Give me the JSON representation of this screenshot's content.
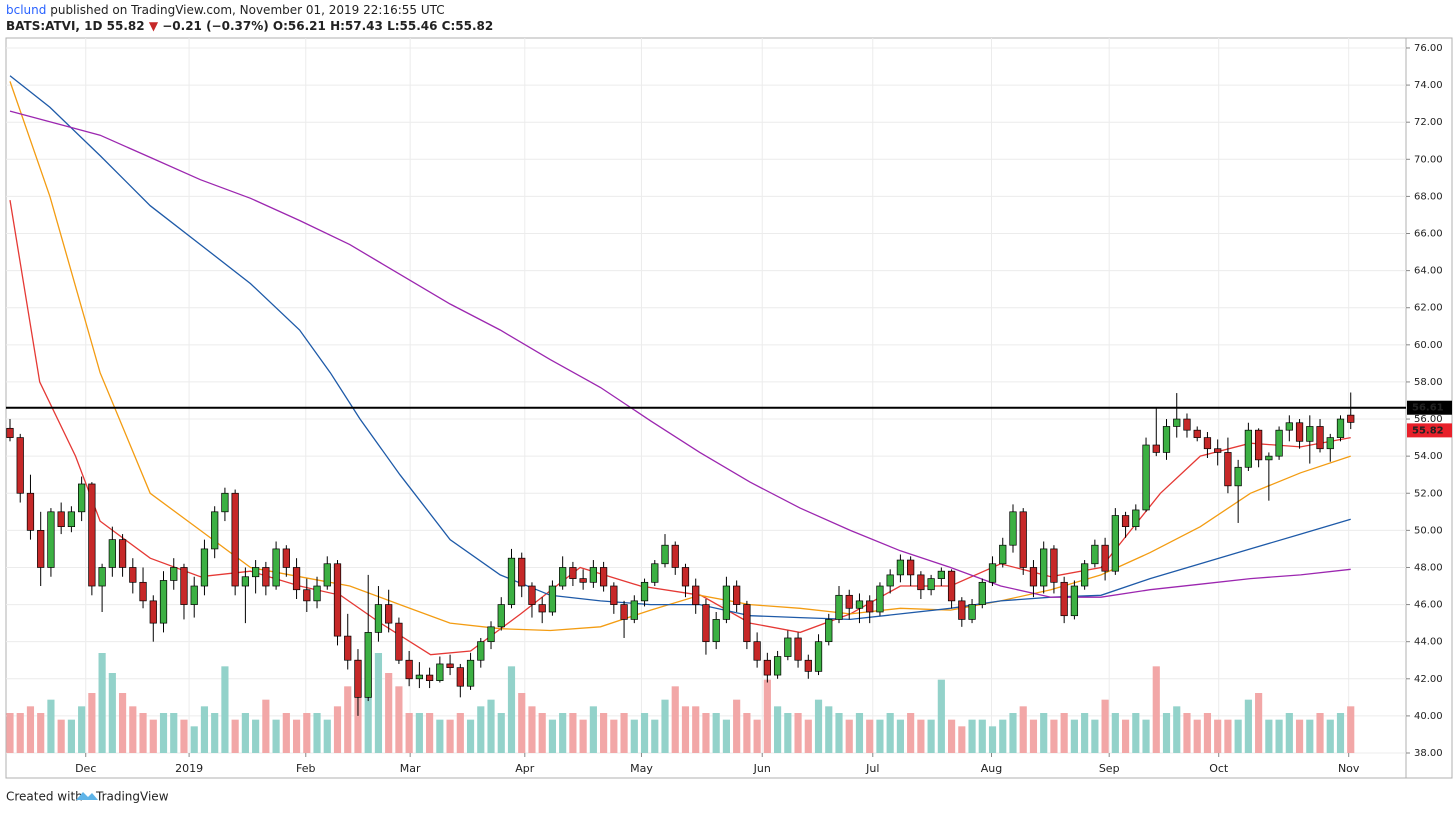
{
  "header": {
    "author": "bclund",
    "published": "published on TradingView.com, November 01, 2019 22:16:55 UTC",
    "symbol": "BATS:ATVI, 1D",
    "price": "55.82",
    "arrow": "▼",
    "change": "−0.21 (−0.37%)",
    "open": "O:56.21",
    "high": "H:57.43",
    "low": "L:55.46",
    "close": "C:55.82"
  },
  "footer": {
    "created": "Created with",
    "brand": "TradingView"
  },
  "chart_data": {
    "type": "candlestick",
    "ylim": [
      38,
      76.43
    ],
    "yticks": [
      {
        "value": 38,
        "label": "38.00"
      },
      {
        "value": 40,
        "label": "40.00"
      },
      {
        "value": 42,
        "label": "42.00"
      },
      {
        "value": 44,
        "label": "44.00"
      },
      {
        "value": 46,
        "label": "46.00"
      },
      {
        "value": 48,
        "label": "48.00"
      },
      {
        "value": 50,
        "label": "50.00"
      },
      {
        "value": 52,
        "label": "52.00"
      },
      {
        "value": 54,
        "label": "54.00"
      },
      {
        "value": 56,
        "label": "56.00"
      },
      {
        "value": 58,
        "label": "58.00"
      },
      {
        "value": 60,
        "label": "60.00"
      },
      {
        "value": 62,
        "label": "62.00"
      },
      {
        "value": 64,
        "label": "64.00"
      },
      {
        "value": 66,
        "label": "66.00"
      },
      {
        "value": 68,
        "label": "68.00"
      },
      {
        "value": 70,
        "label": "70.00"
      },
      {
        "value": 72,
        "label": "72.00"
      },
      {
        "value": 74,
        "label": "74.00"
      },
      {
        "value": 76,
        "label": "76.00"
      }
    ],
    "xlim": [
      -0.39,
      136.4
    ],
    "xticks": [
      {
        "value": 7.4,
        "label": "Dec"
      },
      {
        "value": 17.5,
        "label": "2019"
      },
      {
        "value": 28.9,
        "label": "Feb"
      },
      {
        "value": 39.1,
        "label": "Mar"
      },
      {
        "value": 50.3,
        "label": "Apr"
      },
      {
        "value": 61.7,
        "label": "May"
      },
      {
        "value": 73.5,
        "label": "Jun"
      },
      {
        "value": 84.3,
        "label": "Jul"
      },
      {
        "value": 95.9,
        "label": "Aug"
      },
      {
        "value": 107.4,
        "label": "Sep"
      },
      {
        "value": 118.1,
        "label": "Oct"
      },
      {
        "value": 130.8,
        "label": "Nov"
      }
    ],
    "grid": true,
    "up_color": "#3cb043",
    "down_color": "#c62828",
    "up_volume_color": "#93d2ca",
    "down_volume_color": "#f2a7a7",
    "ohlc": [
      [
        55.5,
        56,
        54.8,
        55
      ],
      [
        55,
        55.2,
        51.5,
        52
      ],
      [
        52,
        53,
        49.5,
        50
      ],
      [
        50,
        51,
        47,
        48
      ],
      [
        48,
        51.2,
        47.5,
        51
      ],
      [
        51,
        51.5,
        49.8,
        50.2
      ],
      [
        50.2,
        51.3,
        49.9,
        51
      ],
      [
        51,
        52.9,
        50.5,
        52.5
      ],
      [
        52.5,
        52.6,
        46.5,
        47
      ],
      [
        47,
        48.2,
        45.6,
        48
      ],
      [
        48,
        50.2,
        47.5,
        49.5
      ],
      [
        49.5,
        49.8,
        47.5,
        48
      ],
      [
        48,
        48.5,
        46.6,
        47.2
      ],
      [
        47.2,
        48,
        45.8,
        46.2
      ],
      [
        46.2,
        46.5,
        44,
        45
      ],
      [
        45,
        47.8,
        44.5,
        47.3
      ],
      [
        47.3,
        48.5,
        46.8,
        48
      ],
      [
        48,
        48.2,
        45.2,
        46
      ],
      [
        46,
        47.5,
        45.3,
        47
      ],
      [
        47,
        49.5,
        46.5,
        49
      ],
      [
        49,
        51.3,
        48.5,
        51
      ],
      [
        51,
        52.3,
        50.5,
        52
      ],
      [
        52,
        52.2,
        46.5,
        47
      ],
      [
        47,
        48,
        45,
        47.5
      ],
      [
        47.5,
        48.4,
        46.6,
        48
      ],
      [
        48,
        48.3,
        46.5,
        47
      ],
      [
        47,
        49.4,
        46.8,
        49
      ],
      [
        49,
        49.2,
        47.5,
        48
      ],
      [
        48,
        48.5,
        46.3,
        46.8
      ],
      [
        46.8,
        47.4,
        45.6,
        46.2
      ],
      [
        46.2,
        47.5,
        45.8,
        47
      ],
      [
        47,
        48.6,
        46.8,
        48.2
      ],
      [
        48.2,
        48.4,
        43.8,
        44.3
      ],
      [
        44.3,
        45.5,
        42.5,
        43
      ],
      [
        43,
        43.6,
        40,
        41
      ],
      [
        41,
        47.6,
        40.8,
        44.5
      ],
      [
        44.5,
        47,
        44,
        46
      ],
      [
        46,
        46.8,
        44.5,
        45
      ],
      [
        45,
        45.3,
        42.8,
        43
      ],
      [
        43,
        43.5,
        41.6,
        42
      ],
      [
        42,
        42.9,
        41.5,
        42.2
      ],
      [
        42.2,
        42.6,
        41.5,
        41.9
      ],
      [
        41.9,
        43.2,
        41.8,
        42.8
      ],
      [
        42.8,
        43.3,
        42.2,
        42.6
      ],
      [
        42.6,
        42.8,
        41,
        41.6
      ],
      [
        41.6,
        43.4,
        41.4,
        43
      ],
      [
        43,
        44.2,
        42.6,
        44
      ],
      [
        44,
        45.1,
        43.6,
        44.8
      ],
      [
        44.8,
        46.4,
        44.6,
        46
      ],
      [
        46,
        49,
        45.8,
        48.5
      ],
      [
        48.5,
        48.8,
        46.4,
        47
      ],
      [
        47,
        47.2,
        45.3,
        46
      ],
      [
        46,
        46.4,
        45,
        45.6
      ],
      [
        45.6,
        47.3,
        45.4,
        47
      ],
      [
        47,
        48.6,
        46.8,
        48
      ],
      [
        48,
        48.3,
        47,
        47.4
      ],
      [
        47.4,
        47.9,
        46.8,
        47.2
      ],
      [
        47.2,
        48.4,
        46.9,
        48
      ],
      [
        48,
        48.3,
        46.7,
        47
      ],
      [
        47,
        47.2,
        45.5,
        46
      ],
      [
        46,
        46.2,
        44.2,
        45.2
      ],
      [
        45.2,
        46.5,
        45,
        46.2
      ],
      [
        46.2,
        47.4,
        45.9,
        47.2
      ],
      [
        47.2,
        48.4,
        47,
        48.2
      ],
      [
        48.2,
        49.8,
        48,
        49.2
      ],
      [
        49.2,
        49.4,
        47.6,
        48
      ],
      [
        48,
        48.2,
        46.4,
        47
      ],
      [
        47,
        47.4,
        45.5,
        46
      ],
      [
        46,
        46.3,
        43.3,
        44
      ],
      [
        44,
        45.6,
        43.6,
        45.2
      ],
      [
        45.2,
        47.5,
        45,
        47
      ],
      [
        47,
        47.3,
        45.6,
        46
      ],
      [
        46,
        46.2,
        43.6,
        44
      ],
      [
        44,
        44.5,
        42.6,
        43
      ],
      [
        43,
        43.4,
        41.8,
        42.2
      ],
      [
        42.2,
        43.5,
        42,
        43.2
      ],
      [
        43.2,
        44.6,
        43,
        44.2
      ],
      [
        44.2,
        44.5,
        42.6,
        43
      ],
      [
        43,
        43.3,
        42,
        42.4
      ],
      [
        42.4,
        44.4,
        42.2,
        44
      ],
      [
        44,
        45.5,
        43.8,
        45.2
      ],
      [
        45.2,
        47,
        45,
        46.5
      ],
      [
        46.5,
        46.8,
        45.2,
        45.8
      ],
      [
        45.8,
        46.6,
        45,
        46.2
      ],
      [
        46.2,
        46.5,
        45,
        45.6
      ],
      [
        45.6,
        47.2,
        45.4,
        47
      ],
      [
        47,
        47.9,
        46.6,
        47.6
      ],
      [
        47.6,
        48.7,
        47.2,
        48.4
      ],
      [
        48.4,
        48.6,
        47,
        47.6
      ],
      [
        47.6,
        47.8,
        46.3,
        46.8
      ],
      [
        46.8,
        47.6,
        46.5,
        47.4
      ],
      [
        47.4,
        48,
        47,
        47.8
      ],
      [
        47.8,
        47.9,
        45.8,
        46.2
      ],
      [
        46.2,
        46.4,
        44.8,
        45.2
      ],
      [
        45.2,
        46.3,
        45,
        46
      ],
      [
        46,
        47.4,
        45.8,
        47.2
      ],
      [
        47.2,
        48.6,
        47,
        48.2
      ],
      [
        48.2,
        49.6,
        48,
        49.2
      ],
      [
        49.2,
        51.4,
        48.8,
        51
      ],
      [
        51,
        51.2,
        47.6,
        48
      ],
      [
        48,
        48.4,
        46.4,
        47
      ],
      [
        47,
        49.4,
        46.6,
        49
      ],
      [
        49,
        49.2,
        46.6,
        47.2
      ],
      [
        47.2,
        47.5,
        45,
        45.4
      ],
      [
        45.4,
        47.3,
        45.2,
        47
      ],
      [
        47,
        48.4,
        46.8,
        48.2
      ],
      [
        48.2,
        49.5,
        48,
        49.2
      ],
      [
        49.2,
        49.6,
        47.3,
        47.8
      ],
      [
        47.8,
        51.2,
        47.6,
        50.8
      ],
      [
        50.8,
        51,
        49.6,
        50.2
      ],
      [
        50.2,
        51.4,
        50,
        51.1
      ],
      [
        51.1,
        55,
        51,
        54.6
      ],
      [
        54.6,
        56.6,
        54,
        54.2
      ],
      [
        54.2,
        56,
        53.8,
        55.6
      ],
      [
        55.6,
        57.4,
        55,
        56
      ],
      [
        56,
        56.3,
        55,
        55.4
      ],
      [
        55.4,
        55.6,
        54.8,
        55
      ],
      [
        55,
        55.3,
        53.9,
        54.4
      ],
      [
        54.4,
        54.9,
        53.5,
        54.2
      ],
      [
        54.2,
        55,
        52,
        52.4
      ],
      [
        52.4,
        53.8,
        50.4,
        53.4
      ],
      [
        53.4,
        55.8,
        53.2,
        55.4
      ],
      [
        55.4,
        55.5,
        53.4,
        53.8
      ],
      [
        53.8,
        54.2,
        51.6,
        54
      ],
      [
        54,
        55.6,
        53.8,
        55.4
      ],
      [
        55.4,
        56.2,
        54.8,
        55.8
      ],
      [
        55.8,
        56,
        54.4,
        54.8
      ],
      [
        54.8,
        56.2,
        53.6,
        55.6
      ],
      [
        55.6,
        56,
        54.2,
        54.4
      ],
      [
        54.4,
        55.2,
        53.7,
        55
      ],
      [
        55,
        56.2,
        54.8,
        56
      ],
      [
        56.21,
        57.43,
        55.46,
        55.82
      ]
    ],
    "volume": [
      6,
      6,
      7,
      6,
      8,
      5,
      5,
      7,
      9,
      15,
      12,
      9,
      7,
      6,
      5,
      6,
      6,
      5,
      4,
      7,
      6,
      13,
      5,
      6,
      5,
      8,
      5,
      6,
      5,
      6,
      6,
      5,
      7,
      10,
      14,
      9,
      15,
      12,
      10,
      6,
      6,
      6,
      5,
      5,
      6,
      5,
      7,
      8,
      6,
      13,
      9,
      7,
      6,
      5,
      6,
      6,
      5,
      7,
      6,
      5,
      6,
      5,
      6,
      5,
      8,
      10,
      7,
      7,
      6,
      6,
      5,
      8,
      6,
      5,
      11,
      7,
      6,
      6,
      5,
      8,
      7,
      6,
      5,
      6,
      5,
      5,
      6,
      5,
      6,
      5,
      5,
      11,
      5,
      4,
      5,
      5,
      4,
      5,
      6,
      7,
      5,
      6,
      5,
      6,
      5,
      6,
      5,
      8,
      6,
      5,
      6,
      5,
      13,
      6,
      7,
      6,
      5,
      6,
      5,
      5,
      5,
      8,
      9,
      5,
      5,
      6,
      5,
      5,
      6,
      5,
      6,
      7
    ],
    "vlim": [
      0,
      30
    ],
    "series": [
      {
        "color": "#e53935",
        "x": [
          0,
          2.9,
          6.4,
          8.8,
          13.7,
          18.6,
          23.5,
          28.3,
          32.3,
          36.2,
          41.1,
          45,
          49.9,
          55.7,
          61.6,
          67.5,
          72.3,
          77.2,
          82.1,
          87,
          91.9,
          96.8,
          101.7,
          106.6,
          109.5,
          112.4,
          116.3,
          121.2,
          126.1,
          131
        ],
        "values": [
          67.8,
          58,
          54,
          50.5,
          48.5,
          47.5,
          47.8,
          47,
          46.5,
          45,
          43.3,
          43.5,
          45.5,
          48,
          47,
          46.5,
          45,
          44.5,
          45.5,
          47,
          47,
          48.2,
          47.5,
          48,
          50,
          52,
          54,
          54.7,
          54.5,
          55
        ]
      },
      {
        "color": "#f39c12",
        "x": [
          0,
          3.9,
          8.8,
          13.7,
          18.6,
          23.5,
          28.3,
          33.2,
          38.1,
          43,
          47.9,
          52.8,
          57.7,
          62.6,
          67.4,
          72.3,
          77.2,
          82.1,
          87,
          91.9,
          96.8,
          101.7,
          106.6,
          111.4,
          116.3,
          121.2,
          126.1,
          131
        ],
        "values": [
          74.2,
          68,
          58.5,
          52,
          50,
          48,
          47.5,
          47,
          46,
          45,
          44.7,
          44.6,
          44.8,
          45.7,
          46.5,
          46,
          45.8,
          45.5,
          45.8,
          45.7,
          46.2,
          46.8,
          47.6,
          48.8,
          50.2,
          52,
          53.1,
          54
        ]
      },
      {
        "color": "#1e5aa8",
        "x": [
          0,
          3.9,
          8.8,
          13.7,
          18.6,
          23.5,
          28.3,
          31.3,
          34.2,
          38.1,
          43,
          47.9,
          52.8,
          57.7,
          62.6,
          67.4,
          72.3,
          77.2,
          82.1,
          87,
          91.9,
          96.8,
          101.7,
          106.6,
          111.4,
          116.3,
          121.2,
          126.1,
          131
        ],
        "values": [
          74.5,
          72.8,
          70.2,
          67.5,
          65.4,
          63.3,
          60.8,
          58.5,
          56,
          53,
          49.5,
          47.6,
          46.5,
          46.2,
          46,
          46,
          45.4,
          45.3,
          45.2,
          45.5,
          45.8,
          46.2,
          46.4,
          46.5,
          47.4,
          48.2,
          49,
          49.8,
          50.6
        ]
      },
      {
        "color": "#9c27b0",
        "x": [
          0,
          8.8,
          13.7,
          18.6,
          23.5,
          28.3,
          33.2,
          38.1,
          43,
          47.9,
          52.8,
          57.7,
          62.6,
          67.4,
          72.3,
          77.2,
          82.1,
          87,
          91.9,
          96.8,
          101.7,
          106.6,
          111.4,
          116.3,
          121.2,
          126.1,
          131
        ],
        "values": [
          72.6,
          71.3,
          70.1,
          68.9,
          67.9,
          66.7,
          65.4,
          63.8,
          62.2,
          60.8,
          59.2,
          57.7,
          55.9,
          54.2,
          52.6,
          51.2,
          50,
          48.9,
          48,
          47,
          46.4,
          46.4,
          46.8,
          47.1,
          47.4,
          47.6,
          47.9
        ]
      }
    ],
    "hline": {
      "value": 56.61,
      "color": "#000000"
    },
    "last_price": {
      "value": 55.82,
      "color": "#e8202a"
    }
  }
}
